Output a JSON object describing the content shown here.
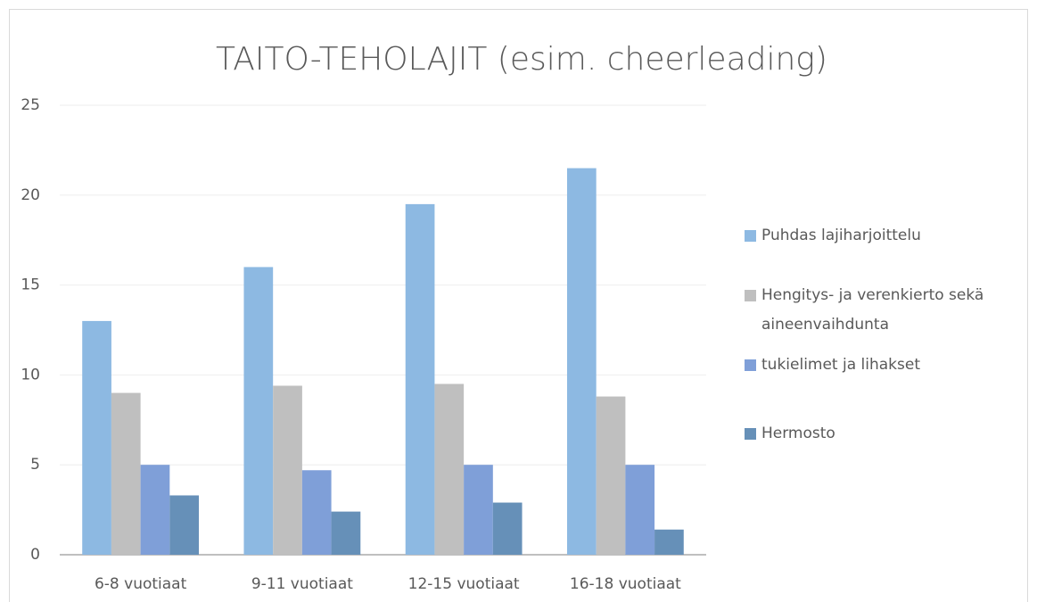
{
  "chart_data": {
    "type": "bar",
    "title": "TAITO-TEHOLAJIT (esim. cheerleading)",
    "categories": [
      "6-8 vuotiaat",
      "9-11 vuotiaat",
      "12-15 vuotiaat",
      "16-18 vuotiaat"
    ],
    "series": [
      {
        "name": "Puhdas lajiharjoittelu",
        "color": "#8db9e2",
        "values": [
          13,
          16,
          19.5,
          21.5
        ]
      },
      {
        "name": "Hengitys- ja verenkierto sekä aineenvaihdunta",
        "color": "#bfbfbf",
        "values": [
          9,
          9.4,
          9.5,
          8.8
        ]
      },
      {
        "name": "tukielimet ja lihakset",
        "color": "#7f9fd8",
        "values": [
          5,
          4.7,
          5,
          5
        ]
      },
      {
        "name": "Hermosto",
        "color": "#6690b8",
        "values": [
          3.3,
          2.4,
          2.9,
          1.4
        ]
      }
    ],
    "ylim": [
      0,
      25
    ],
    "yticks": [
      0,
      5,
      10,
      15,
      20,
      25
    ],
    "grid": true,
    "legend": "right"
  }
}
